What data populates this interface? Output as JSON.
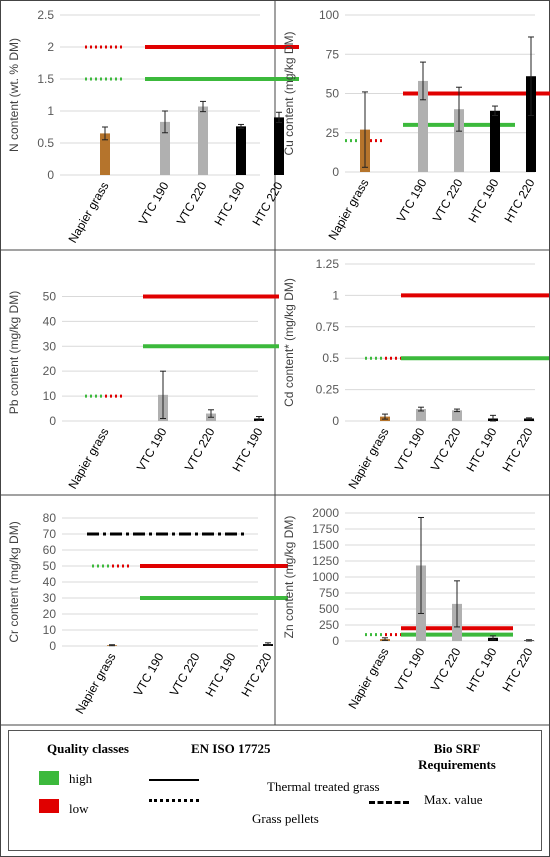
{
  "chart_data": [
    {
      "type": "bar",
      "categories": [
        "Napier grass",
        "VTC 190",
        "VTC 220",
        "HTC 190",
        "HTC 220"
      ],
      "ylabel": "N content (wt. % DM)",
      "ylim": [
        0,
        2.5
      ],
      "yticks": [
        "0",
        "0.5",
        "1",
        "1.5",
        "2",
        "2.5"
      ],
      "values": [
        0.65,
        0.83,
        1.07,
        0.76,
        0.9
      ],
      "errors": [
        0.1,
        0.17,
        0.08,
        0.03,
        0.08
      ],
      "bar_colors": [
        "#b5742c",
        "#b0b0b0",
        "#b0b0b0",
        "#000000",
        "#000000"
      ],
      "thresholds": [
        {
          "quality": "low",
          "color": "#e00000",
          "style": "dotted",
          "value": 2.0,
          "from": 0,
          "to": 0
        },
        {
          "quality": "high",
          "color": "#3cb93c",
          "style": "dotted",
          "value": 1.5,
          "from": 0,
          "to": 0
        },
        {
          "quality": "low",
          "color": "#e00000",
          "style": "solid",
          "value": 2.0,
          "from": 1,
          "to": 4
        },
        {
          "quality": "high",
          "color": "#3cb93c",
          "style": "solid",
          "value": 1.5,
          "from": 1,
          "to": 4
        }
      ],
      "grid": true
    },
    {
      "type": "bar",
      "categories": [
        "Napier grass",
        "VTC 190",
        "VTC 220",
        "HTC 190",
        "HTC 220"
      ],
      "ylabel": "Cu content (mg/kg DM)",
      "ylim": [
        0,
        100
      ],
      "yticks": [
        "0",
        "25",
        "50",
        "75",
        "100"
      ],
      "values": [
        27,
        58,
        40,
        39,
        61
      ],
      "errors": [
        24,
        12,
        14,
        3,
        25
      ],
      "bar_colors": [
        "#b5742c",
        "#b0b0b0",
        "#b0b0b0",
        "#000000",
        "#000000"
      ],
      "thresholds": [
        {
          "quality": "high",
          "color": "#3cb93c",
          "style": "dotted",
          "value": 20,
          "from": 0,
          "to": 0
        },
        {
          "quality": "low",
          "color": "#e00000",
          "style": "dotted",
          "value": 20,
          "from": 0,
          "to": 0
        },
        {
          "quality": "low",
          "color": "#e00000",
          "style": "solid",
          "value": 50,
          "from": 1,
          "to": 4
        },
        {
          "quality": "high",
          "color": "#3cb93c",
          "style": "solid",
          "value": 30,
          "from": 1,
          "to": 3
        }
      ],
      "grid": true
    },
    {
      "type": "bar",
      "categories": [
        "Napier grass",
        "VTC 190",
        "VTC 220",
        "HTC 190"
      ],
      "ylabel": "Pb content (mg/kg DM)",
      "ylim": [
        0,
        55
      ],
      "yticks": [
        "0",
        "10",
        "20",
        "30",
        "40",
        "50"
      ],
      "values": [
        0,
        10.5,
        3,
        1
      ],
      "errors": [
        0,
        9.5,
        1.5,
        0.8
      ],
      "bar_colors": [
        "#b5742c",
        "#b0b0b0",
        "#b0b0b0",
        "#000000"
      ],
      "thresholds": [
        {
          "quality": "high",
          "color": "#3cb93c",
          "style": "dotted",
          "value": 10,
          "from": 0,
          "to": 0
        },
        {
          "quality": "low",
          "color": "#e00000",
          "style": "dotted",
          "value": 10,
          "from": 0,
          "to": 0
        },
        {
          "quality": "low",
          "color": "#e00000",
          "style": "solid",
          "value": 50,
          "from": 1,
          "to": 3
        },
        {
          "quality": "high",
          "color": "#3cb93c",
          "style": "solid",
          "value": 30,
          "from": 1,
          "to": 3
        }
      ],
      "grid": true
    },
    {
      "type": "bar",
      "categories": [
        "Napier grass",
        "VTC 190",
        "VTC 220",
        "HTC 190",
        "HTC 220"
      ],
      "ylabel": "Cd content* (mg/kg DM)",
      "ylim": [
        0,
        1.25
      ],
      "yticks": [
        "0",
        "0.25",
        "0.5",
        "0.75",
        "1",
        "1.25"
      ],
      "values": [
        0.035,
        0.095,
        0.085,
        0.02,
        0.02
      ],
      "errors": [
        0.02,
        0.015,
        0.01,
        0.025,
        0.005
      ],
      "bar_colors": [
        "#b5742c",
        "#b0b0b0",
        "#b0b0b0",
        "#000000",
        "#000000"
      ],
      "thresholds": [
        {
          "quality": "high",
          "color": "#3cb93c",
          "style": "dotted",
          "value": 0.5,
          "from": 0,
          "to": 0
        },
        {
          "quality": "low",
          "color": "#e00000",
          "style": "dotted",
          "value": 0.5,
          "from": 0,
          "to": 0
        },
        {
          "quality": "low",
          "color": "#e00000",
          "style": "solid",
          "value": 1.0,
          "from": 1,
          "to": 4
        },
        {
          "quality": "high",
          "color": "#3cb93c",
          "style": "solid",
          "value": 0.5,
          "from": 1,
          "to": 4
        }
      ],
      "grid": true
    },
    {
      "type": "bar",
      "categories": [
        "Napier grass",
        "VTC 190",
        "VTC 220",
        "HTC 190",
        "HTC 220"
      ],
      "ylabel": "Cr content (mg/kg DM)",
      "ylim": [
        0,
        80
      ],
      "yticks": [
        "0",
        "10",
        "20",
        "30",
        "40",
        "50",
        "60",
        "70",
        "80"
      ],
      "values": [
        0.5,
        0,
        0,
        0,
        1.2
      ],
      "errors": [
        0.3,
        0,
        0,
        0,
        0.8
      ],
      "bar_colors": [
        "#b5742c",
        "#b0b0b0",
        "#b0b0b0",
        "#000000",
        "#000000"
      ],
      "thresholds": [
        {
          "quality": "high",
          "color": "#3cb93c",
          "style": "dotted",
          "value": 50,
          "from": 0,
          "to": 0
        },
        {
          "quality": "low",
          "color": "#e00000",
          "style": "dotted",
          "value": 50,
          "from": 0,
          "to": 0
        },
        {
          "quality": "low",
          "color": "#e00000",
          "style": "solid",
          "value": 50,
          "from": 1,
          "to": 4
        },
        {
          "quality": "high",
          "color": "#3cb93c",
          "style": "solid",
          "value": 30,
          "from": 1,
          "to": 4
        },
        {
          "quality": "max",
          "color": "#000000",
          "style": "dashdot",
          "value": 70,
          "from": 0,
          "to": 4
        }
      ],
      "grid": true
    },
    {
      "type": "bar",
      "categories": [
        "Napier grass",
        "VTC 190",
        "VTC 220",
        "HTC 190",
        "HTC 220"
      ],
      "ylabel": "Zn content (mg/kg DM)",
      "ylim": [
        0,
        2000
      ],
      "yticks": [
        "0",
        "250",
        "500",
        "750",
        "1000",
        "1250",
        "1500",
        "1750",
        "2000"
      ],
      "values": [
        30,
        1180,
        580,
        50,
        10
      ],
      "errors": [
        20,
        750,
        360,
        30,
        10
      ],
      "bar_colors": [
        "#b5742c",
        "#b0b0b0",
        "#b0b0b0",
        "#000000",
        "#000000"
      ],
      "thresholds": [
        {
          "quality": "high",
          "color": "#3cb93c",
          "style": "dotted",
          "value": 100,
          "from": 0,
          "to": 0
        },
        {
          "quality": "low",
          "color": "#e00000",
          "style": "dotted",
          "value": 100,
          "from": 0,
          "to": 0
        },
        {
          "quality": "low",
          "color": "#e00000",
          "style": "solid",
          "value": 200,
          "from": 1,
          "to": 3
        },
        {
          "quality": "high",
          "color": "#3cb93c",
          "style": "solid",
          "value": 100,
          "from": 1,
          "to": 3
        }
      ],
      "grid": true
    }
  ],
  "legend": {
    "quality_title": "Quality classes",
    "high_label": "high",
    "low_label": "low",
    "high_color": "#3cb93c",
    "low_color": "#e00000",
    "standard_title": "EN ISO 17725",
    "solid_label": "Thermal treated grass",
    "dotted_label": "Grass pellets",
    "bio_title": "Bio SRF Requirements",
    "max_label": "Max. value"
  }
}
